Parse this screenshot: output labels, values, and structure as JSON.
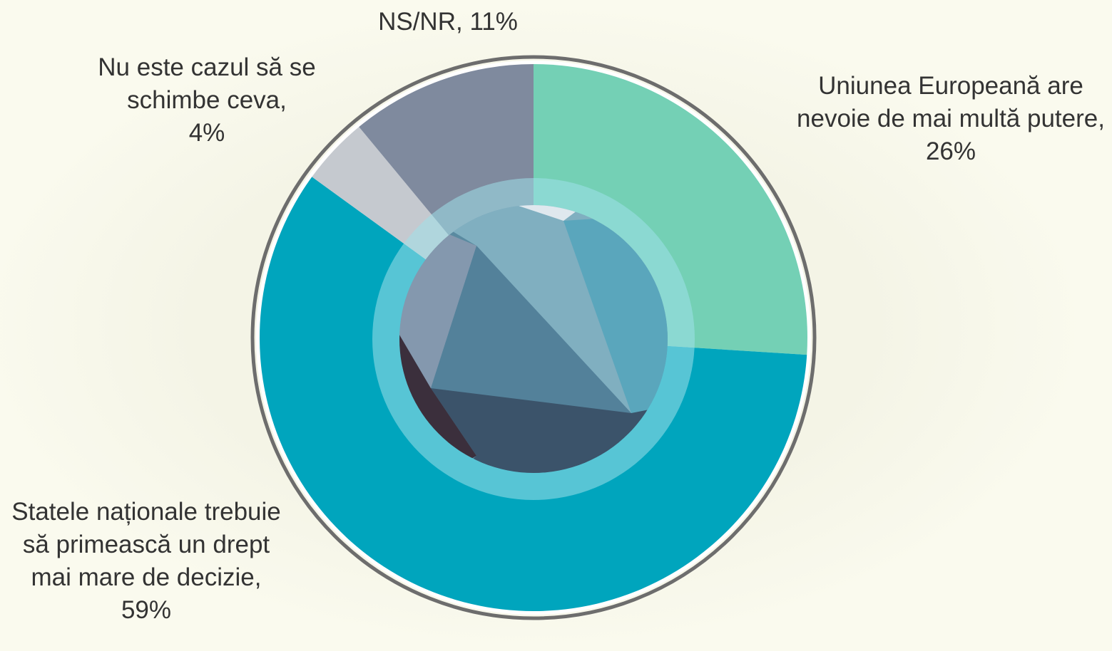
{
  "chart_data": {
    "type": "pie",
    "categories": [
      "Uniunea Europeană are nevoie de mai multă putere,",
      "Statele naționale trebuie să primească un drept mai mare de decizie,",
      "Nu este cazul să se schimbe ceva,",
      "NS/NR,"
    ],
    "values": [
      26,
      59,
      4,
      11
    ],
    "value_labels": [
      "26%",
      "59%",
      "4%",
      "11%"
    ],
    "colors": [
      "#74d0b5",
      "#00a5bd",
      "#c5c9cf",
      "#7f8a9e"
    ]
  }
}
